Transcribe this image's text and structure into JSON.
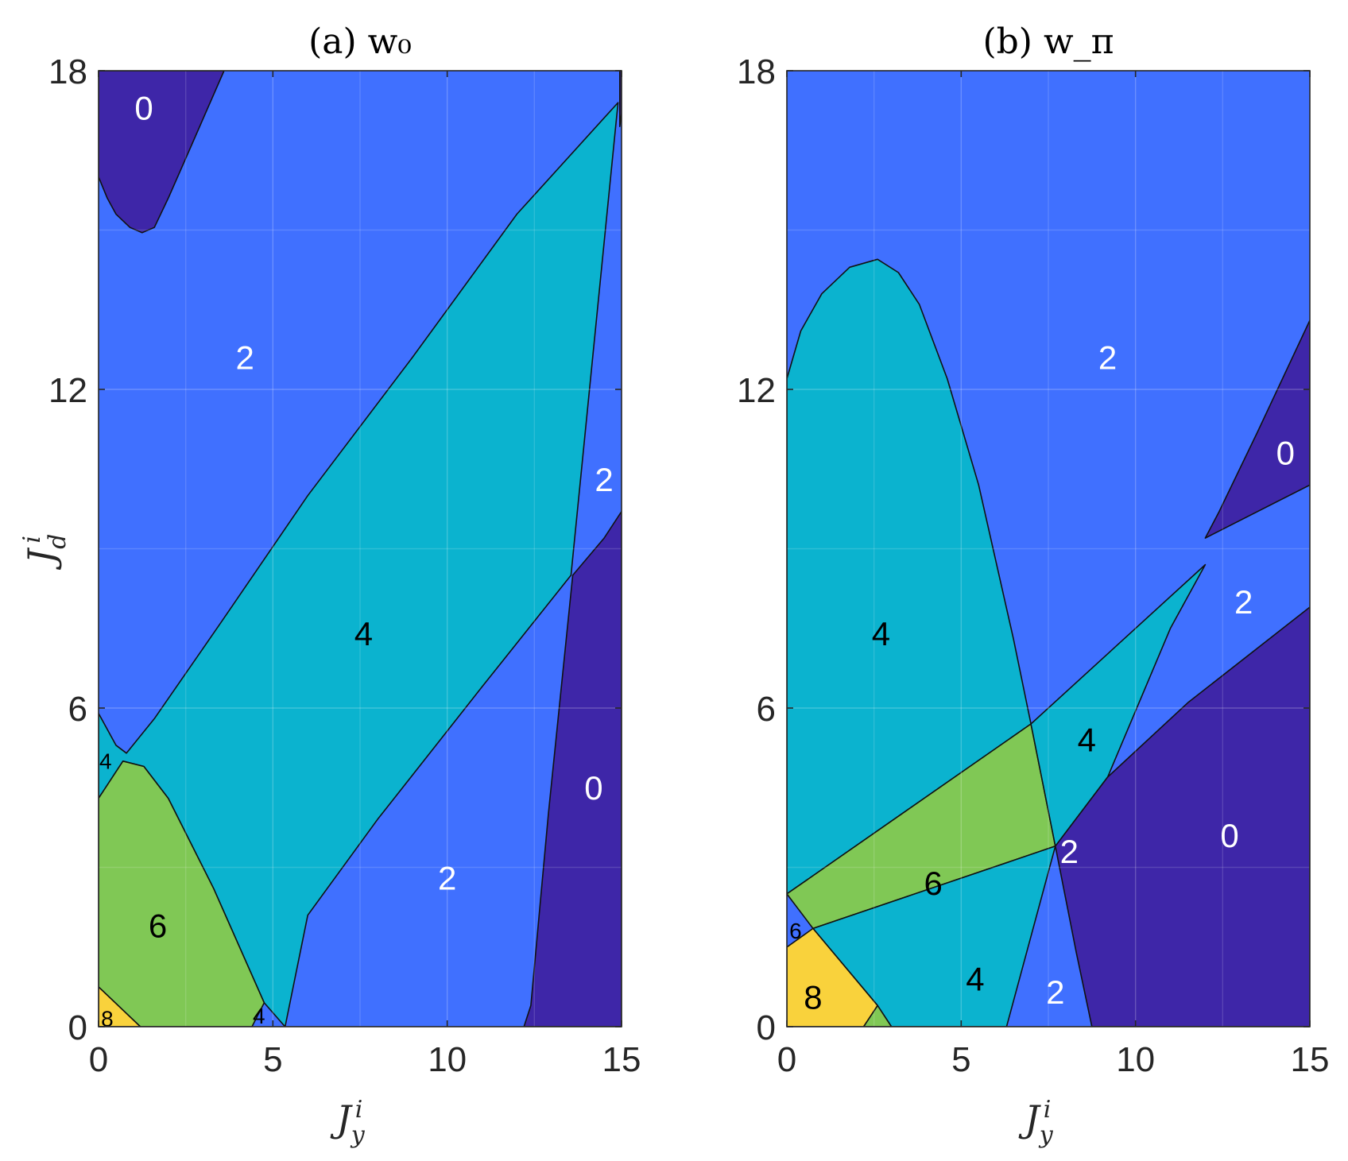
{
  "chart_data": [
    {
      "type": "heatmap",
      "title": "(a) w₀",
      "xlabel": "J_y^i",
      "ylabel": "J_d^i",
      "xlim": [
        0,
        15
      ],
      "ylim": [
        0,
        18
      ],
      "xticks": [
        "0",
        "5",
        "10",
        "15"
      ],
      "yticks": [
        "0",
        "6",
        "12",
        "18"
      ],
      "grid": true,
      "region_values": {
        "0": "#3e26a8",
        "2": "#4070ff",
        "4": "#0bb3cf",
        "6": "#80c855",
        "8": "#f9d23c"
      },
      "regions": [
        {
          "value": 2,
          "polygon": [
            [
              0,
              0
            ],
            [
              15,
              0
            ],
            [
              15,
              18
            ],
            [
              0,
              18
            ]
          ]
        },
        {
          "value": 0,
          "polygon": [
            [
              0,
              18
            ],
            [
              3.6,
              18
            ],
            [
              3.2,
              17.4
            ],
            [
              2.6,
              16.5
            ],
            [
              2.0,
              15.6
            ],
            [
              1.6,
              15.05
            ],
            [
              1.25,
              14.95
            ],
            [
              0.9,
              15.05
            ],
            [
              0.5,
              15.3
            ],
            [
              0.25,
              15.6
            ],
            [
              0,
              16.0
            ]
          ]
        },
        {
          "value": 0,
          "polygon": [
            [
              15,
              18
            ],
            [
              14.95,
              18
            ],
            [
              14.95,
              16.95
            ],
            [
              15,
              17.2
            ]
          ]
        },
        {
          "value": 4,
          "polygon": [
            [
              0,
              5.9
            ],
            [
              0.5,
              5.3
            ],
            [
              0.8,
              5.15
            ],
            [
              1.6,
              5.8
            ],
            [
              3.5,
              7.6
            ],
            [
              6,
              10
            ],
            [
              9,
              12.6
            ],
            [
              12,
              15.3
            ],
            [
              14.9,
              17.4
            ],
            [
              13.55,
              8.5
            ],
            [
              11,
              6.4
            ],
            [
              8,
              3.9
            ],
            [
              6,
              2.1
            ],
            [
              5.35,
              0
            ],
            [
              4.75,
              0.45
            ],
            [
              3.3,
              2.6
            ],
            [
              2.0,
              4.3
            ],
            [
              1.3,
              4.9
            ],
            [
              0.7,
              5.0
            ],
            [
              0,
              4.3
            ]
          ]
        },
        {
          "value": 6,
          "polygon": [
            [
              0,
              4.3
            ],
            [
              0.7,
              5.0
            ],
            [
              1.3,
              4.9
            ],
            [
              2.0,
              4.3
            ],
            [
              3.3,
              2.6
            ],
            [
              4.75,
              0.45
            ],
            [
              4.4,
              0
            ],
            [
              3.8,
              0
            ],
            [
              1.2,
              0
            ],
            [
              0,
              0.75
            ]
          ]
        },
        {
          "value": 8,
          "polygon": [
            [
              0,
              0.75
            ],
            [
              1.2,
              0
            ],
            [
              0,
              0
            ]
          ]
        },
        {
          "value": 0,
          "polygon": [
            [
              12.2,
              0
            ],
            [
              15,
              0
            ],
            [
              15,
              9.7
            ],
            [
              14.5,
              9.2
            ],
            [
              13.6,
              8.5
            ],
            [
              12.9,
              4
            ],
            [
              12.4,
              0.4
            ]
          ]
        }
      ],
      "labels": [
        {
          "text": "0",
          "x": 1.3,
          "y": 17.3,
          "color": "#ffffff"
        },
        {
          "text": "2",
          "x": 4.2,
          "y": 12.6,
          "color": "#ffffff"
        },
        {
          "text": "2",
          "x": 14.5,
          "y": 10.3,
          "color": "#ffffff"
        },
        {
          "text": "4",
          "x": 7.6,
          "y": 7.4,
          "color": "#000000"
        },
        {
          "text": "0",
          "x": 14.2,
          "y": 4.5,
          "color": "#ffffff"
        },
        {
          "text": "2",
          "x": 10.0,
          "y": 2.8,
          "color": "#ffffff"
        },
        {
          "text": "6",
          "x": 1.7,
          "y": 1.9,
          "color": "#000000"
        },
        {
          "text": "4",
          "x": 0.2,
          "y": 5.0,
          "color": "#000000",
          "small": true
        },
        {
          "text": "4",
          "x": 4.6,
          "y": 0.2,
          "color": "#000000",
          "small": true
        },
        {
          "text": "8",
          "x": 0.25,
          "y": 0.15,
          "color": "#000000",
          "small": true
        }
      ]
    },
    {
      "type": "heatmap",
      "title": "(b) w_π",
      "xlabel": "J_y^i",
      "ylabel": "",
      "xlim": [
        0,
        15
      ],
      "ylim": [
        0,
        18
      ],
      "xticks": [
        "0",
        "5",
        "10",
        "15"
      ],
      "yticks": [
        "0",
        "6",
        "12",
        "18"
      ],
      "grid": true,
      "region_values": {
        "0": "#3e26a8",
        "2": "#4070ff",
        "4": "#0bb3cf",
        "6": "#80c855",
        "8": "#f9d23c"
      },
      "regions": [
        {
          "value": 2,
          "polygon": [
            [
              0,
              0
            ],
            [
              15,
              0
            ],
            [
              15,
              18
            ],
            [
              0,
              18
            ]
          ]
        },
        {
          "value": 4,
          "polygon": [
            [
              0,
              12.2
            ],
            [
              0.4,
              13.1
            ],
            [
              1.0,
              13.8
            ],
            [
              1.8,
              14.3
            ],
            [
              2.6,
              14.45
            ],
            [
              3.2,
              14.2
            ],
            [
              3.8,
              13.6
            ],
            [
              4.6,
              12.2
            ],
            [
              5.5,
              10.2
            ],
            [
              6.5,
              7.3
            ],
            [
              7.0,
              5.7
            ],
            [
              0,
              2.5
            ]
          ]
        },
        {
          "value": 6,
          "polygon": [
            [
              0,
              2.5
            ],
            [
              7.0,
              5.7
            ],
            [
              7.7,
              3.4
            ],
            [
              0.75,
              1.85
            ]
          ]
        },
        {
          "value": 4,
          "polygon": [
            [
              7.0,
              5.7
            ],
            [
              12.0,
              8.7
            ],
            [
              11.0,
              7.5
            ],
            [
              9.2,
              4.7
            ],
            [
              7.7,
              3.4
            ]
          ]
        },
        {
          "value": 4,
          "polygon": [
            [
              0.75,
              1.85
            ],
            [
              7.7,
              3.4
            ],
            [
              6.3,
              0
            ],
            [
              3.0,
              0
            ],
            [
              2.6,
              0.4
            ]
          ]
        },
        {
          "value": 6,
          "polygon": [
            [
              2.6,
              0.4
            ],
            [
              3.0,
              0
            ],
            [
              2.2,
              0
            ]
          ]
        },
        {
          "value": 8,
          "polygon": [
            [
              0,
              1.5
            ],
            [
              0.75,
              1.85
            ],
            [
              2.6,
              0.4
            ],
            [
              2.2,
              0
            ],
            [
              0,
              0
            ]
          ]
        },
        {
          "value": 0,
          "polygon": [
            [
              12.0,
              9.2
            ],
            [
              15,
              10.2
            ],
            [
              15,
              13.3
            ],
            [
              13.5,
              11.2
            ],
            [
              12.4,
              9.7
            ]
          ]
        },
        {
          "value": 0,
          "polygon": [
            [
              7.7,
              3.4
            ],
            [
              9.2,
              4.7
            ],
            [
              11.5,
              6.1
            ],
            [
              15,
              7.9
            ],
            [
              15,
              0
            ],
            [
              8.75,
              0
            ],
            [
              8.3,
              1.4
            ]
          ]
        }
      ],
      "labels": [
        {
          "text": "2",
          "x": 9.2,
          "y": 12.6,
          "color": "#ffffff"
        },
        {
          "text": "0",
          "x": 14.3,
          "y": 10.8,
          "color": "#ffffff"
        },
        {
          "text": "2",
          "x": 13.1,
          "y": 8.0,
          "color": "#ffffff"
        },
        {
          "text": "4",
          "x": 2.7,
          "y": 7.4,
          "color": "#000000"
        },
        {
          "text": "4",
          "x": 8.6,
          "y": 5.4,
          "color": "#000000"
        },
        {
          "text": "0",
          "x": 12.7,
          "y": 3.6,
          "color": "#ffffff"
        },
        {
          "text": "2",
          "x": 8.1,
          "y": 3.3,
          "color": "#ffffff"
        },
        {
          "text": "6",
          "x": 4.2,
          "y": 2.7,
          "color": "#000000"
        },
        {
          "text": "4",
          "x": 5.4,
          "y": 0.9,
          "color": "#000000"
        },
        {
          "text": "2",
          "x": 7.7,
          "y": 0.65,
          "color": "#ffffff"
        },
        {
          "text": "8",
          "x": 0.75,
          "y": 0.55,
          "color": "#000000"
        },
        {
          "text": "6",
          "x": 0.25,
          "y": 1.8,
          "color": "#000000",
          "small": true
        }
      ]
    }
  ]
}
